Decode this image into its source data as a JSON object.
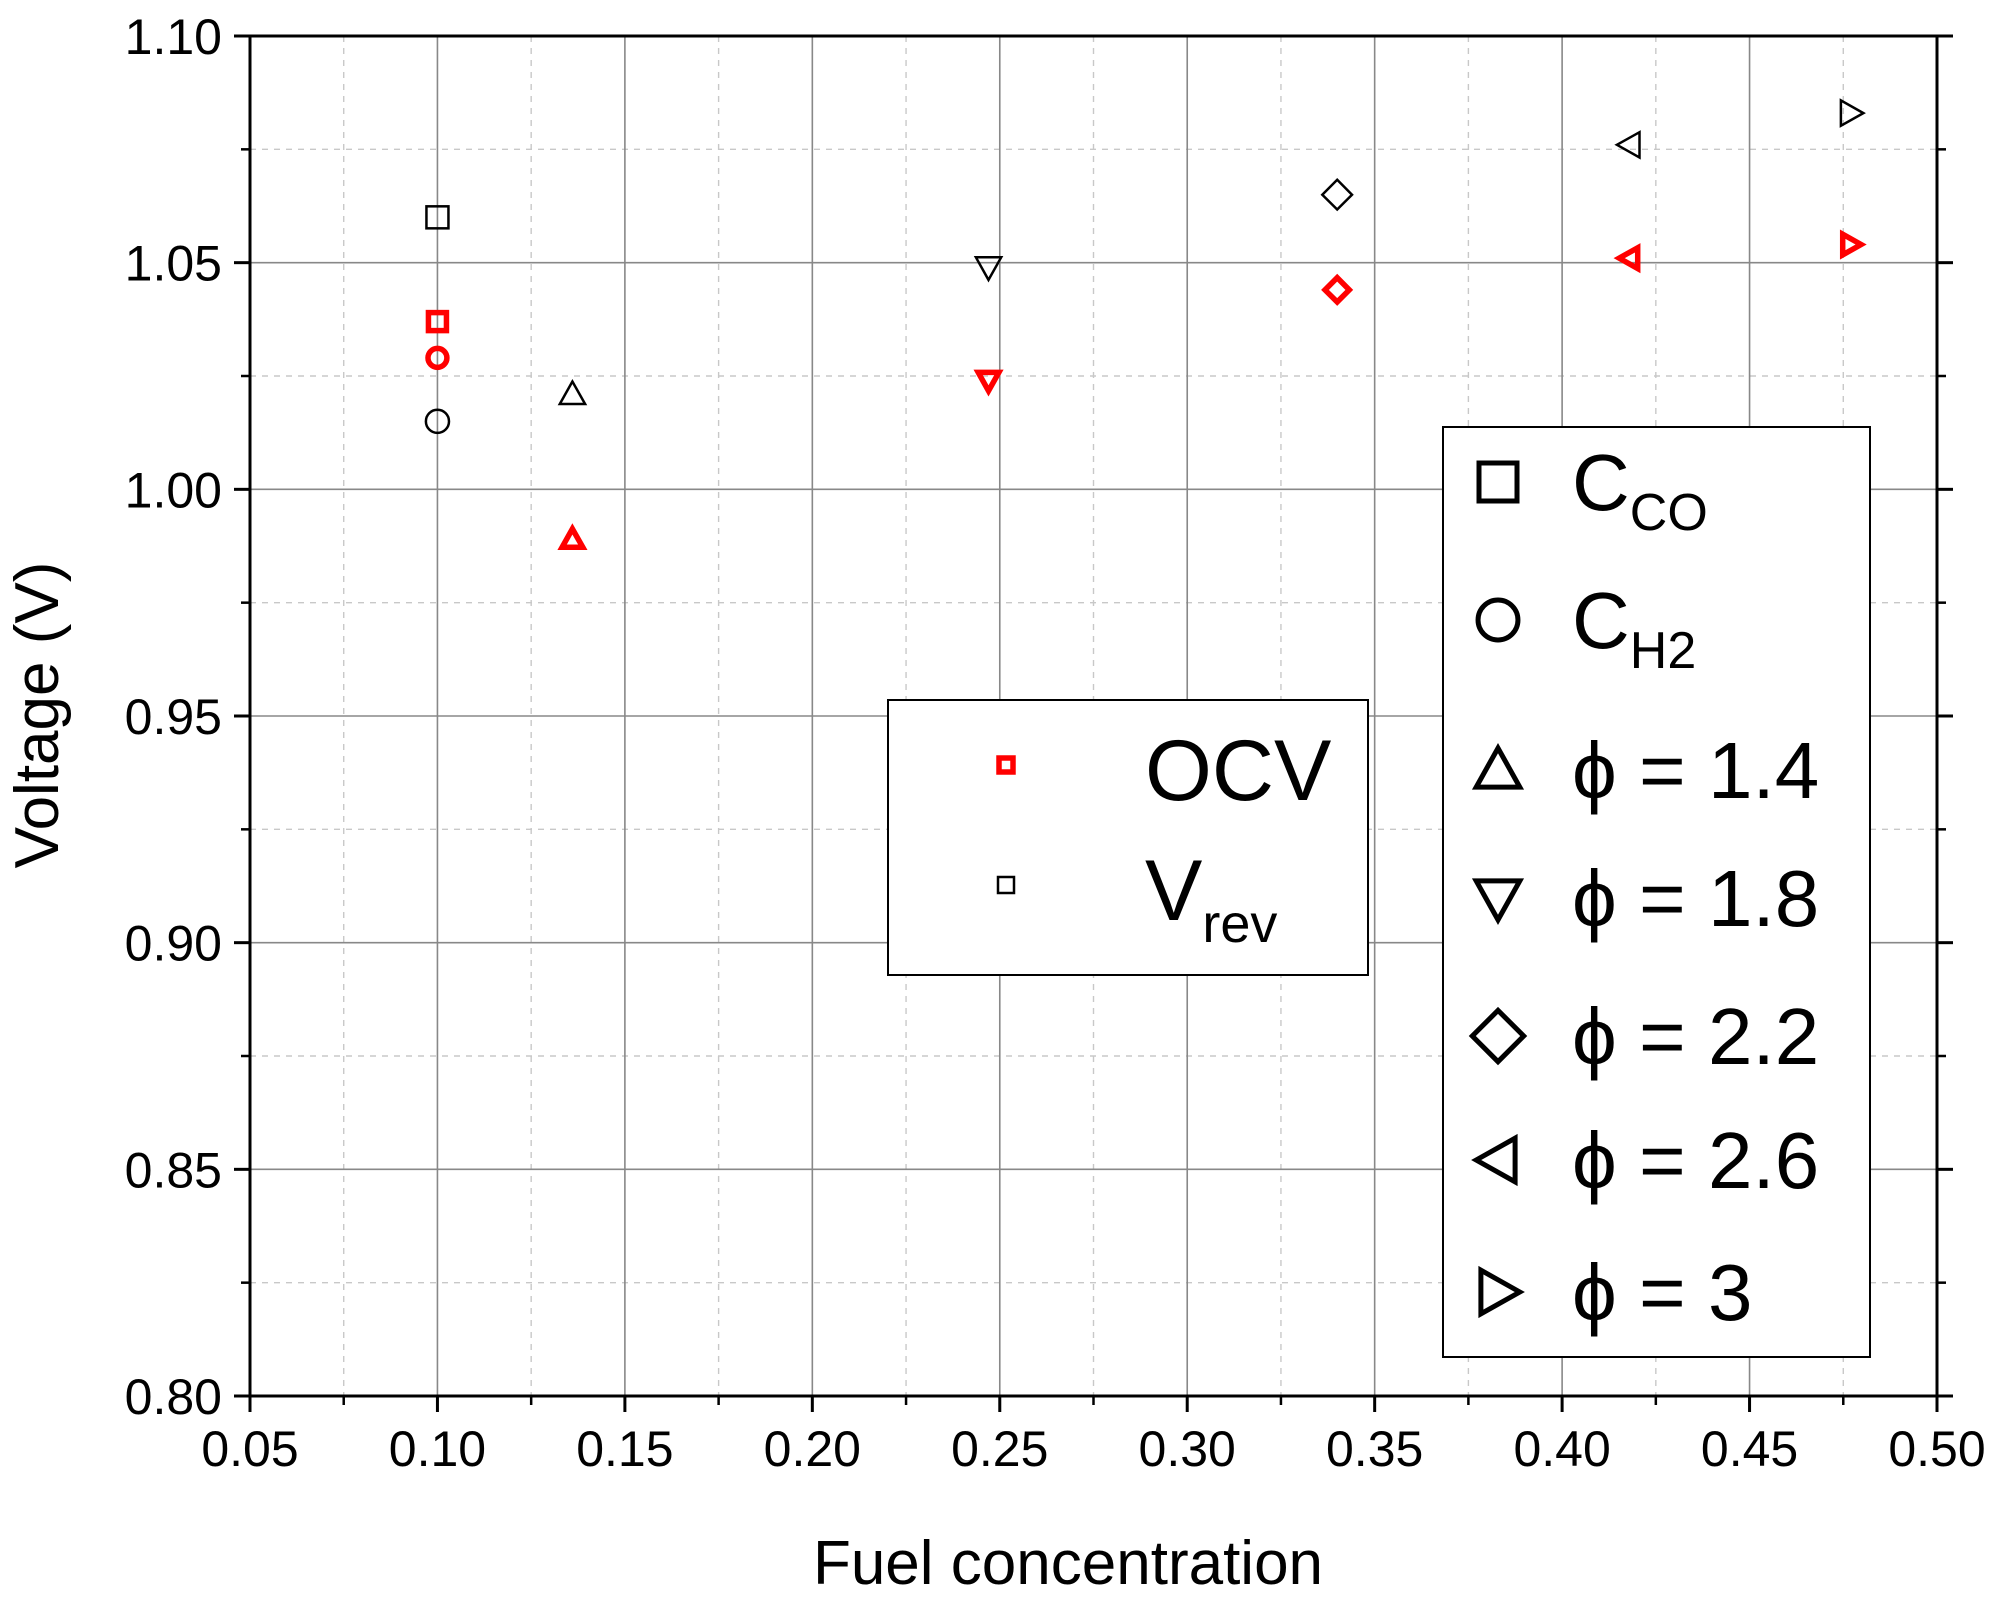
{
  "chart_data": {
    "type": "scatter",
    "xlabel": "Fuel concentration",
    "ylabel": "Voltage (V)",
    "xlim": [
      0.05,
      0.5
    ],
    "ylim": [
      0.8,
      1.1
    ],
    "x_major_ticks": [
      "0.05",
      "0.10",
      "0.15",
      "0.20",
      "0.25",
      "0.30",
      "0.35",
      "0.40",
      "0.45",
      "0.50"
    ],
    "y_major_ticks": [
      "0.80",
      "0.85",
      "0.90",
      "0.95",
      "1.00",
      "1.05",
      "1.10"
    ],
    "grid": true,
    "colors": {
      "ocv": "#ff0000",
      "vrev": "#000000",
      "frame": "#000000",
      "grid": "#888888",
      "minor_grid": "#c8c8c8"
    },
    "series": [
      {
        "name": "OCV",
        "color": "#ff0000",
        "points": [
          {
            "x": 0.1,
            "y": 1.037,
            "marker": "square"
          },
          {
            "x": 0.1,
            "y": 1.029,
            "marker": "circle"
          },
          {
            "x": 0.136,
            "y": 0.989,
            "marker": "triangle-up"
          },
          {
            "x": 0.247,
            "y": 1.024,
            "marker": "triangle-down"
          },
          {
            "x": 0.34,
            "y": 1.044,
            "marker": "diamond"
          },
          {
            "x": 0.418,
            "y": 1.051,
            "marker": "triangle-left"
          },
          {
            "x": 0.477,
            "y": 1.054,
            "marker": "triangle-right"
          }
        ]
      },
      {
        "name": "Vrev",
        "color": "#000000",
        "points": [
          {
            "x": 0.1,
            "y": 1.06,
            "marker": "square"
          },
          {
            "x": 0.1,
            "y": 1.015,
            "marker": "circle"
          },
          {
            "x": 0.136,
            "y": 1.021,
            "marker": "triangle-up"
          },
          {
            "x": 0.247,
            "y": 1.049,
            "marker": "triangle-down"
          },
          {
            "x": 0.34,
            "y": 1.065,
            "marker": "diamond"
          },
          {
            "x": 0.418,
            "y": 1.076,
            "marker": "triangle-left"
          },
          {
            "x": 0.477,
            "y": 1.083,
            "marker": "triangle-right"
          }
        ]
      }
    ],
    "legend_series": {
      "placement": "center",
      "entries": [
        {
          "label": "OCV",
          "sub": "",
          "color": "#ff0000"
        },
        {
          "label": "V",
          "sub": "rev",
          "color": "#000000"
        }
      ]
    },
    "legend_markers": {
      "placement": "right",
      "entries": [
        {
          "marker": "square",
          "label": "C",
          "sub": "CO"
        },
        {
          "marker": "circle",
          "label": "C",
          "sub": "H2"
        },
        {
          "marker": "triangle-up",
          "label": "ϕ = 1.4",
          "sub": ""
        },
        {
          "marker": "triangle-down",
          "label": "ϕ = 1.8",
          "sub": ""
        },
        {
          "marker": "diamond",
          "label": "ϕ = 2.2",
          "sub": ""
        },
        {
          "marker": "triangle-left",
          "label": "ϕ = 2.6",
          "sub": ""
        },
        {
          "marker": "triangle-right",
          "label": "ϕ = 3",
          "sub": ""
        }
      ]
    }
  }
}
